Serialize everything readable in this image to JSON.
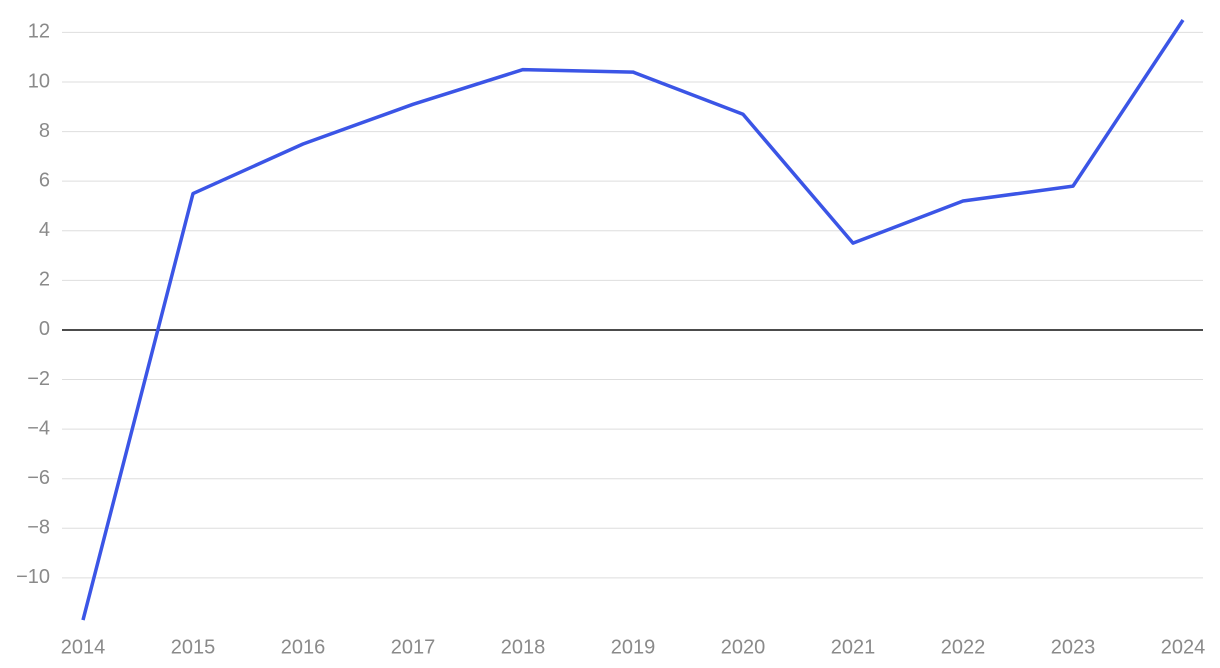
{
  "chart_data": {
    "type": "line",
    "x": [
      2014,
      2015,
      2016,
      2017,
      2018,
      2019,
      2020,
      2021,
      2022,
      2023,
      2024
    ],
    "series": [
      {
        "color": "#3b55e6",
        "values": [
          -11.7,
          5.5,
          7.5,
          9.1,
          10.5,
          10.4,
          8.7,
          3.5,
          5.2,
          5.8,
          12.5
        ]
      }
    ],
    "xlim": [
      2014,
      2024
    ],
    "xticks": [
      2014,
      2015,
      2016,
      2017,
      2018,
      2019,
      2020,
      2021,
      2022,
      2023,
      2024
    ],
    "ylim": [
      -11.9,
      12.5
    ],
    "yticks": [
      {
        "value": -10,
        "label": "−10"
      },
      {
        "value": -8,
        "label": "−8"
      },
      {
        "value": -6,
        "label": "−6"
      },
      {
        "value": -4,
        "label": "−4"
      },
      {
        "value": -2,
        "label": "−2"
      },
      0,
      2,
      4,
      6,
      8,
      10,
      12
    ],
    "grid": true
  }
}
